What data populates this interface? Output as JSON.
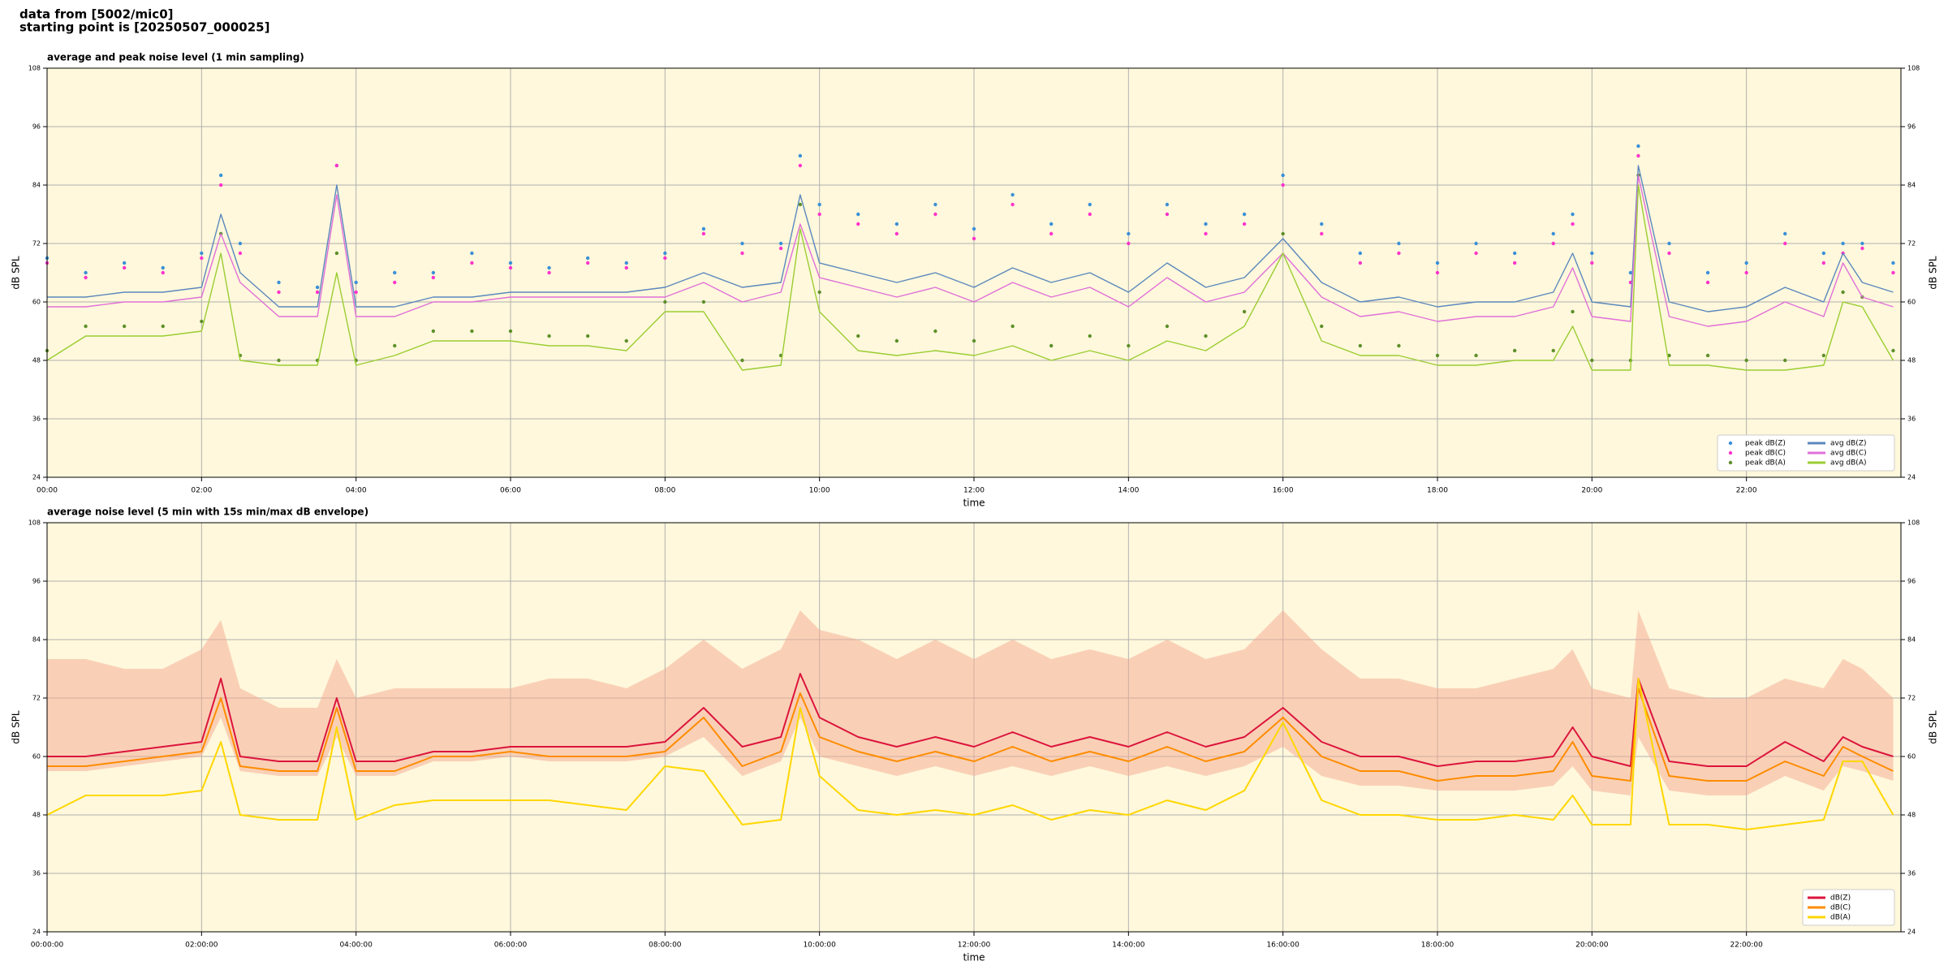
{
  "header": {
    "lines": [
      "data from [5002/mic0]",
      "starting point is [20250507_000025]"
    ]
  },
  "chart_data": [
    {
      "type": "line",
      "title": "average and peak noise level (1 min sampling)",
      "xlabel": "time",
      "ylabel": "dB SPL",
      "x": [
        0,
        0.5,
        1,
        1.5,
        2,
        2.25,
        2.5,
        3,
        3.5,
        3.75,
        4,
        4.5,
        5,
        5.5,
        6,
        6.5,
        7,
        7.5,
        8,
        8.5,
        9,
        9.5,
        9.75,
        10,
        10.5,
        11,
        11.5,
        12,
        12.5,
        13,
        13.5,
        14,
        14.5,
        15,
        15.5,
        16,
        16.5,
        17,
        17.5,
        18,
        18.5,
        19,
        19.5,
        19.75,
        20,
        20.5,
        20.6,
        21,
        21.5,
        22,
        22.5,
        23,
        23.25,
        23.5,
        23.9
      ],
      "xlim": [
        0,
        24
      ],
      "xticks": [
        {
          "value": 0,
          "label": "00:00"
        },
        {
          "value": 2,
          "label": "02:00"
        },
        {
          "value": 4,
          "label": "04:00"
        },
        {
          "value": 6,
          "label": "06:00"
        },
        {
          "value": 8,
          "label": "08:00"
        },
        {
          "value": 10,
          "label": "10:00"
        },
        {
          "value": 12,
          "label": "12:00"
        },
        {
          "value": 14,
          "label": "14:00"
        },
        {
          "value": 16,
          "label": "16:00"
        },
        {
          "value": 18,
          "label": "18:00"
        },
        {
          "value": 20,
          "label": "20:00"
        },
        {
          "value": 22,
          "label": "22:00"
        }
      ],
      "ylim": [
        24,
        108
      ],
      "yticks": [
        24,
        36,
        48,
        60,
        72,
        84,
        96,
        108
      ],
      "grid": true,
      "legend": "lower right",
      "legend_columns": 2,
      "series": [
        {
          "name": "peak dB(Z)",
          "color": "#3a8fd8",
          "style": "dots",
          "values": [
            69,
            66,
            68,
            67,
            70,
            86,
            72,
            64,
            63,
            88,
            64,
            66,
            66,
            70,
            68,
            67,
            69,
            68,
            70,
            75,
            72,
            72,
            90,
            80,
            78,
            76,
            80,
            75,
            82,
            76,
            80,
            74,
            80,
            76,
            78,
            86,
            76,
            70,
            72,
            68,
            72,
            70,
            74,
            78,
            70,
            66,
            92,
            72,
            66,
            68,
            74,
            70,
            72,
            72,
            68
          ]
        },
        {
          "name": "peak dB(C)",
          "color": "#ff33cc",
          "style": "dots",
          "values": [
            68,
            65,
            67,
            66,
            69,
            84,
            70,
            62,
            62,
            88,
            62,
            64,
            65,
            68,
            67,
            66,
            68,
            67,
            69,
            74,
            70,
            71,
            88,
            78,
            76,
            74,
            78,
            73,
            80,
            74,
            78,
            72,
            78,
            74,
            76,
            84,
            74,
            68,
            70,
            66,
            70,
            68,
            72,
            76,
            68,
            64,
            90,
            70,
            64,
            66,
            72,
            68,
            70,
            71,
            66
          ]
        },
        {
          "name": "peak dB(A)",
          "color": "#5e8f2a",
          "style": "dots",
          "values": [
            50,
            55,
            55,
            55,
            56,
            74,
            49,
            48,
            48,
            70,
            48,
            51,
            54,
            54,
            54,
            53,
            53,
            52,
            60,
            60,
            48,
            49,
            80,
            62,
            53,
            52,
            54,
            52,
            55,
            51,
            53,
            51,
            55,
            53,
            58,
            74,
            55,
            51,
            51,
            49,
            49,
            50,
            50,
            58,
            48,
            48,
            86,
            49,
            49,
            48,
            48,
            49,
            62,
            61,
            50
          ]
        },
        {
          "name": "avg dB(Z)",
          "color": "#5b88bd",
          "style": "line",
          "values": [
            61,
            61,
            62,
            62,
            63,
            78,
            66,
            59,
            59,
            84,
            59,
            59,
            61,
            61,
            62,
            62,
            62,
            62,
            63,
            66,
            63,
            64,
            82,
            68,
            66,
            64,
            66,
            63,
            67,
            64,
            66,
            62,
            68,
            63,
            65,
            73,
            64,
            60,
            61,
            59,
            60,
            60,
            62,
            70,
            60,
            59,
            88,
            60,
            58,
            59,
            63,
            60,
            70,
            64,
            62
          ]
        },
        {
          "name": "avg dB(C)",
          "color": "#e070d8",
          "style": "line",
          "values": [
            59,
            59,
            60,
            60,
            61,
            74,
            64,
            57,
            57,
            82,
            57,
            57,
            60,
            60,
            61,
            61,
            61,
            61,
            61,
            64,
            60,
            62,
            76,
            65,
            63,
            61,
            63,
            60,
            64,
            61,
            63,
            59,
            65,
            60,
            62,
            70,
            61,
            57,
            58,
            56,
            57,
            57,
            59,
            67,
            57,
            56,
            86,
            57,
            55,
            56,
            60,
            57,
            68,
            61,
            59
          ]
        },
        {
          "name": "avg dB(A)",
          "color": "#9acd32",
          "style": "line",
          "values": [
            48,
            53,
            53,
            53,
            54,
            70,
            48,
            47,
            47,
            66,
            47,
            49,
            52,
            52,
            52,
            51,
            51,
            50,
            58,
            58,
            46,
            47,
            75,
            58,
            50,
            49,
            50,
            49,
            51,
            48,
            50,
            48,
            52,
            50,
            55,
            70,
            52,
            49,
            49,
            47,
            47,
            48,
            48,
            55,
            46,
            46,
            84,
            47,
            47,
            46,
            46,
            47,
            60,
            59,
            48
          ]
        }
      ]
    },
    {
      "type": "line",
      "title": "average noise level (5 min with 15s min/max dB envelope)",
      "xlabel": "time",
      "ylabel": "dB SPL",
      "x": [
        0,
        0.5,
        1,
        1.5,
        2,
        2.25,
        2.5,
        3,
        3.5,
        3.75,
        4,
        4.5,
        5,
        5.5,
        6,
        6.5,
        7,
        7.5,
        8,
        8.5,
        9,
        9.5,
        9.75,
        10,
        10.5,
        11,
        11.5,
        12,
        12.5,
        13,
        13.5,
        14,
        14.5,
        15,
        15.5,
        16,
        16.5,
        17,
        17.5,
        18,
        18.5,
        19,
        19.5,
        19.75,
        20,
        20.5,
        20.6,
        21,
        21.5,
        22,
        22.5,
        23,
        23.25,
        23.5,
        23.9
      ],
      "xlim": [
        0,
        24
      ],
      "xticks": [
        {
          "value": 0,
          "label": "00:00:00"
        },
        {
          "value": 2,
          "label": "02:00:00"
        },
        {
          "value": 4,
          "label": "04:00:00"
        },
        {
          "value": 6,
          "label": "06:00:00"
        },
        {
          "value": 8,
          "label": "08:00:00"
        },
        {
          "value": 10,
          "label": "10:00:00"
        },
        {
          "value": 12,
          "label": "12:00:00"
        },
        {
          "value": 14,
          "label": "14:00:00"
        },
        {
          "value": 16,
          "label": "16:00:00"
        },
        {
          "value": 18,
          "label": "18:00:00"
        },
        {
          "value": 20,
          "label": "20:00:00"
        },
        {
          "value": 22,
          "label": "22:00:00"
        }
      ],
      "ylim": [
        24,
        108
      ],
      "yticks": [
        24,
        36,
        48,
        60,
        72,
        84,
        96,
        108
      ],
      "grid": true,
      "legend": "lower right",
      "legend_columns": 1,
      "envelope": {
        "color": "#f4a890",
        "upper": [
          80,
          80,
          78,
          78,
          82,
          88,
          74,
          70,
          70,
          80,
          72,
          74,
          74,
          74,
          74,
          76,
          76,
          74,
          78,
          84,
          78,
          82,
          90,
          86,
          84,
          80,
          84,
          80,
          84,
          80,
          82,
          80,
          84,
          80,
          82,
          90,
          82,
          76,
          76,
          74,
          74,
          76,
          78,
          82,
          74,
          72,
          90,
          74,
          72,
          72,
          76,
          74,
          80,
          78,
          72
        ],
        "lower": [
          57,
          57,
          58,
          59,
          60,
          68,
          57,
          56,
          56,
          64,
          56,
          56,
          59,
          59,
          60,
          59,
          59,
          59,
          60,
          64,
          56,
          59,
          68,
          60,
          58,
          56,
          58,
          56,
          58,
          56,
          58,
          56,
          58,
          56,
          58,
          62,
          56,
          54,
          54,
          53,
          53,
          53,
          54,
          58,
          53,
          52,
          64,
          53,
          52,
          52,
          56,
          53,
          58,
          57,
          55
        ]
      },
      "series": [
        {
          "name": "dB(Z)",
          "color": "#dc143c",
          "style": "line",
          "values": [
            60,
            60,
            61,
            62,
            63,
            76,
            60,
            59,
            59,
            72,
            59,
            59,
            61,
            61,
            62,
            62,
            62,
            62,
            63,
            70,
            62,
            64,
            77,
            68,
            64,
            62,
            64,
            62,
            65,
            62,
            64,
            62,
            65,
            62,
            64,
            70,
            63,
            60,
            60,
            58,
            59,
            59,
            60,
            66,
            60,
            58,
            76,
            59,
            58,
            58,
            63,
            59,
            64,
            62,
            60
          ]
        },
        {
          "name": "dB(C)",
          "color": "#ff8c00",
          "style": "line",
          "values": [
            58,
            58,
            59,
            60,
            61,
            72,
            58,
            57,
            57,
            70,
            57,
            57,
            60,
            60,
            61,
            60,
            60,
            60,
            61,
            68,
            58,
            61,
            73,
            64,
            61,
            59,
            61,
            59,
            62,
            59,
            61,
            59,
            62,
            59,
            61,
            68,
            60,
            57,
            57,
            55,
            56,
            56,
            57,
            63,
            56,
            55,
            74,
            56,
            55,
            55,
            59,
            56,
            62,
            60,
            57
          ]
        },
        {
          "name": "dB(A)",
          "color": "#ffd700",
          "style": "line",
          "values": [
            48,
            52,
            52,
            52,
            53,
            63,
            48,
            47,
            47,
            66,
            47,
            50,
            51,
            51,
            51,
            51,
            50,
            49,
            58,
            57,
            46,
            47,
            70,
            56,
            49,
            48,
            49,
            48,
            50,
            47,
            49,
            48,
            51,
            49,
            53,
            67,
            51,
            48,
            48,
            47,
            47,
            48,
            47,
            52,
            46,
            46,
            76,
            46,
            46,
            45,
            46,
            47,
            59,
            59,
            48
          ]
        }
      ]
    }
  ]
}
